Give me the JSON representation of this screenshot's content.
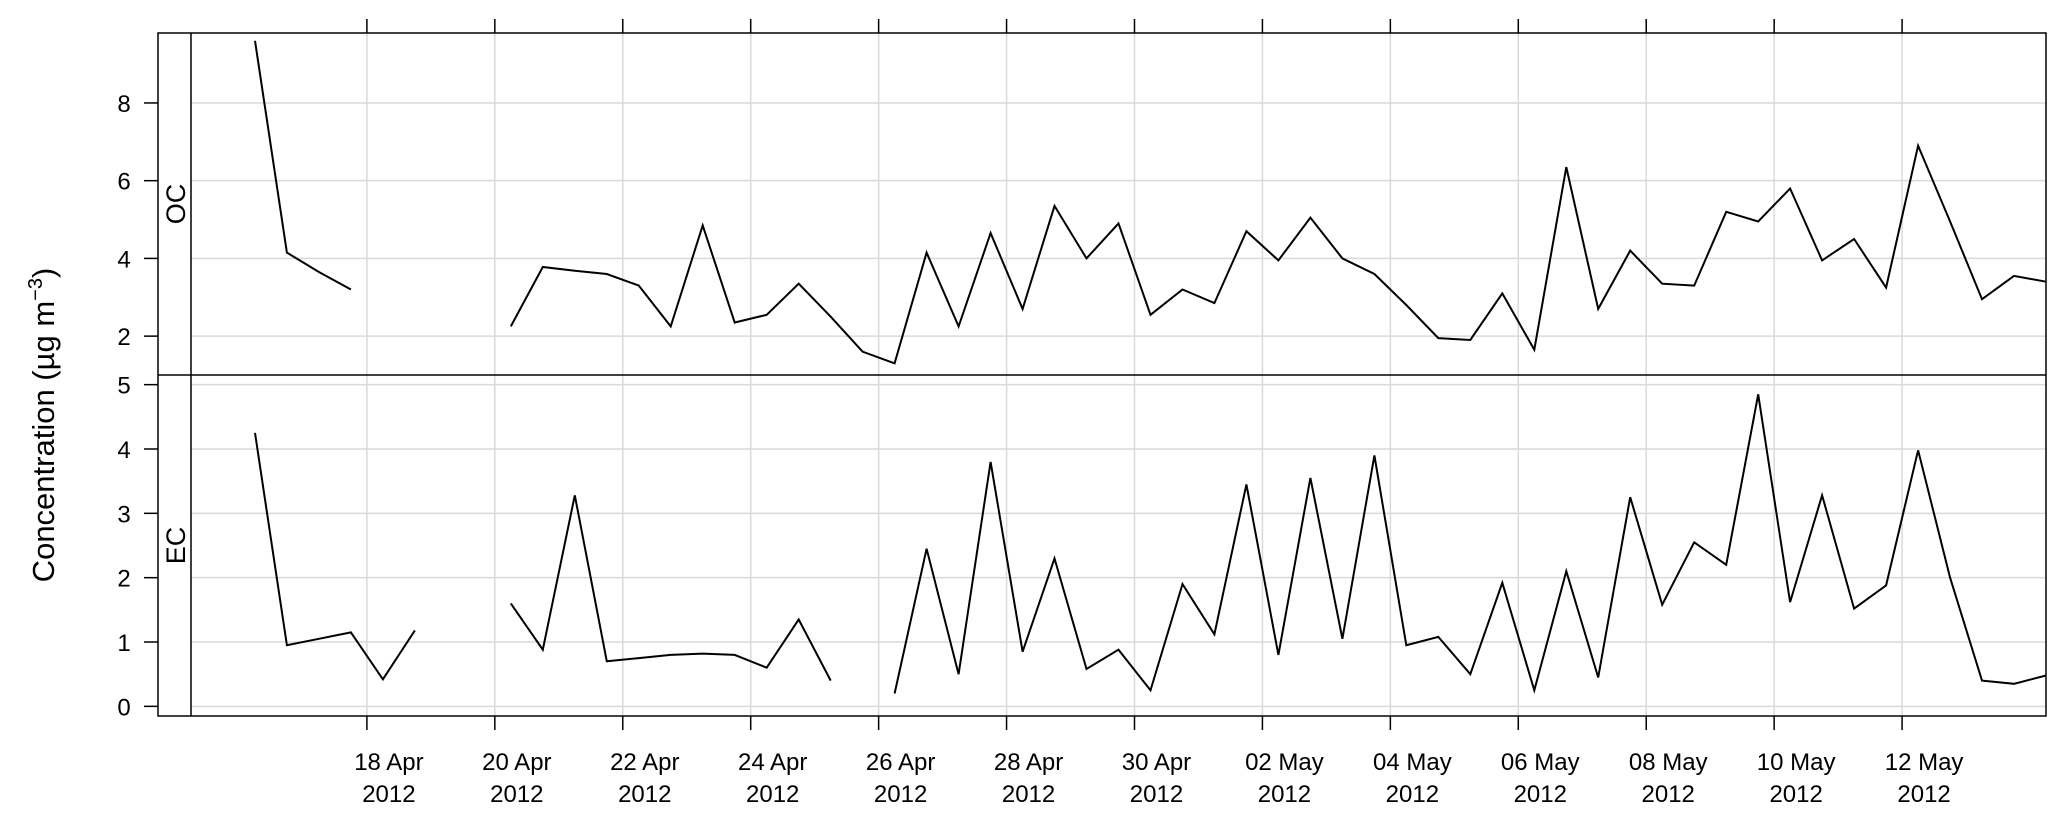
{
  "chart_data": {
    "type": "line",
    "ylabel": {
      "main": "Concentration (µg m",
      "exponent": "−3",
      "close": ")"
    },
    "x_ticks": [
      {
        "date": "2012-04-18",
        "line1": "18 Apr",
        "line2": "2012"
      },
      {
        "date": "2012-04-20",
        "line1": "20 Apr",
        "line2": "2012"
      },
      {
        "date": "2012-04-22",
        "line1": "22 Apr",
        "line2": "2012"
      },
      {
        "date": "2012-04-24",
        "line1": "24 Apr",
        "line2": "2012"
      },
      {
        "date": "2012-04-26",
        "line1": "26 Apr",
        "line2": "2012"
      },
      {
        "date": "2012-04-28",
        "line1": "28 Apr",
        "line2": "2012"
      },
      {
        "date": "2012-04-30",
        "line1": "30 Apr",
        "line2": "2012"
      },
      {
        "date": "2012-05-02",
        "line1": "02 May",
        "line2": "2012"
      },
      {
        "date": "2012-05-04",
        "line1": "04 May",
        "line2": "2012"
      },
      {
        "date": "2012-05-06",
        "line1": "06 May",
        "line2": "2012"
      },
      {
        "date": "2012-05-08",
        "line1": "08 May",
        "line2": "2012"
      },
      {
        "date": "2012-05-10",
        "line1": "10 May",
        "line2": "2012"
      },
      {
        "date": "2012-05-12",
        "line1": "12 May",
        "line2": "2012"
      }
    ],
    "x_range": [
      "2012-04-15T06:00",
      "2012-05-14T06:00"
    ],
    "grid": true,
    "panels": [
      {
        "name": "OC",
        "ylim": [
          1,
          9.8
        ],
        "yticks": [
          2,
          4,
          6,
          8
        ],
        "series": [
          [
            [
              "2012-04-16T06:00",
              9.6
            ],
            [
              "2012-04-16T18:00",
              4.15
            ],
            [
              "2012-04-17T06:00",
              3.65
            ],
            [
              "2012-04-17T18:00",
              3.2
            ]
          ],
          [
            [
              "2012-04-20T06:00",
              2.25
            ],
            [
              "2012-04-20T18:00",
              3.78
            ],
            [
              "2012-04-21T06:00",
              3.68
            ],
            [
              "2012-04-21T18:00",
              3.6
            ],
            [
              "2012-04-22T06:00",
              3.3
            ],
            [
              "2012-04-22T18:00",
              2.25
            ],
            [
              "2012-04-23T06:00",
              4.85
            ],
            [
              "2012-04-23T18:00",
              2.35
            ],
            [
              "2012-04-24T06:00",
              2.55
            ],
            [
              "2012-04-24T18:00",
              3.35
            ],
            [
              "2012-04-25T06:00",
              2.5
            ],
            [
              "2012-04-25T18:00",
              1.6
            ],
            [
              "2012-04-26T06:00",
              1.3
            ],
            [
              "2012-04-26T18:00",
              4.15
            ],
            [
              "2012-04-27T06:00",
              2.25
            ],
            [
              "2012-04-27T18:00",
              4.65
            ],
            [
              "2012-04-28T06:00",
              2.7
            ],
            [
              "2012-04-28T18:00",
              5.35
            ],
            [
              "2012-04-29T06:00",
              4.0
            ],
            [
              "2012-04-29T18:00",
              4.9
            ],
            [
              "2012-04-30T06:00",
              2.55
            ],
            [
              "2012-04-30T18:00",
              3.2
            ],
            [
              "2012-05-01T06:00",
              2.85
            ],
            [
              "2012-05-01T18:00",
              4.7
            ],
            [
              "2012-05-02T06:00",
              3.95
            ],
            [
              "2012-05-02T18:00",
              5.05
            ],
            [
              "2012-05-03T06:00",
              4.0
            ],
            [
              "2012-05-03T18:00",
              3.6
            ],
            [
              "2012-05-04T06:00",
              2.8
            ],
            [
              "2012-05-04T18:00",
              1.95
            ],
            [
              "2012-05-05T06:00",
              1.9
            ],
            [
              "2012-05-05T18:00",
              3.1
            ],
            [
              "2012-05-06T06:00",
              1.65
            ],
            [
              "2012-05-06T18:00",
              6.35
            ],
            [
              "2012-05-07T06:00",
              2.7
            ],
            [
              "2012-05-07T18:00",
              4.2
            ],
            [
              "2012-05-08T06:00",
              3.35
            ],
            [
              "2012-05-08T18:00",
              3.3
            ],
            [
              "2012-05-09T06:00",
              5.2
            ],
            [
              "2012-05-09T18:00",
              4.95
            ],
            [
              "2012-05-10T06:00",
              5.8
            ],
            [
              "2012-05-10T18:00",
              3.95
            ],
            [
              "2012-05-11T06:00",
              4.5
            ],
            [
              "2012-05-11T18:00",
              3.25
            ],
            [
              "2012-05-12T06:00",
              6.9
            ],
            [
              "2012-05-12T18:00",
              4.95
            ],
            [
              "2012-05-13T06:00",
              2.95
            ],
            [
              "2012-05-13T18:00",
              3.55
            ],
            [
              "2012-05-14T06:00",
              3.4
            ]
          ]
        ]
      },
      {
        "name": "EC",
        "ylim": [
          -0.15,
          5.15
        ],
        "yticks": [
          0,
          1,
          2,
          3,
          4,
          5
        ],
        "series": [
          [
            [
              "2012-04-16T06:00",
              4.25
            ],
            [
              "2012-04-16T18:00",
              0.95
            ],
            [
              "2012-04-17T06:00",
              1.05
            ],
            [
              "2012-04-17T18:00",
              1.15
            ],
            [
              "2012-04-18T06:00",
              0.42
            ],
            [
              "2012-04-18T18:00",
              1.18
            ]
          ],
          [
            [
              "2012-04-20T06:00",
              1.6
            ],
            [
              "2012-04-20T18:00",
              0.88
            ],
            [
              "2012-04-21T06:00",
              3.28
            ],
            [
              "2012-04-21T18:00",
              0.7
            ],
            [
              "2012-04-22T06:00",
              0.75
            ],
            [
              "2012-04-22T18:00",
              0.8
            ],
            [
              "2012-04-23T06:00",
              0.82
            ],
            [
              "2012-04-23T18:00",
              0.8
            ],
            [
              "2012-04-24T06:00",
              0.6
            ],
            [
              "2012-04-24T18:00",
              1.35
            ],
            [
              "2012-04-25T06:00",
              0.4
            ]
          ],
          [
            [
              "2012-04-26T06:00",
              0.2
            ],
            [
              "2012-04-26T18:00",
              2.45
            ],
            [
              "2012-04-27T06:00",
              0.5
            ],
            [
              "2012-04-27T18:00",
              3.8
            ],
            [
              "2012-04-28T06:00",
              0.85
            ],
            [
              "2012-04-28T18:00",
              2.3
            ],
            [
              "2012-04-29T06:00",
              0.58
            ],
            [
              "2012-04-29T18:00",
              0.88
            ],
            [
              "2012-04-30T06:00",
              0.25
            ],
            [
              "2012-04-30T18:00",
              1.9
            ],
            [
              "2012-05-01T06:00",
              1.12
            ],
            [
              "2012-05-01T18:00",
              3.45
            ],
            [
              "2012-05-02T06:00",
              0.8
            ],
            [
              "2012-05-02T18:00",
              3.55
            ],
            [
              "2012-05-03T06:00",
              1.05
            ],
            [
              "2012-05-03T18:00",
              3.9
            ],
            [
              "2012-05-04T06:00",
              0.95
            ],
            [
              "2012-05-04T18:00",
              1.08
            ],
            [
              "2012-05-05T06:00",
              0.5
            ],
            [
              "2012-05-05T18:00",
              1.92
            ],
            [
              "2012-05-06T06:00",
              0.25
            ],
            [
              "2012-05-06T18:00",
              2.1
            ],
            [
              "2012-05-07T06:00",
              0.45
            ],
            [
              "2012-05-07T18:00",
              3.25
            ],
            [
              "2012-05-08T06:00",
              1.58
            ],
            [
              "2012-05-08T18:00",
              2.55
            ],
            [
              "2012-05-09T06:00",
              2.2
            ],
            [
              "2012-05-09T18:00",
              4.85
            ],
            [
              "2012-05-10T06:00",
              1.62
            ],
            [
              "2012-05-10T18:00",
              3.28
            ],
            [
              "2012-05-11T06:00",
              1.52
            ],
            [
              "2012-05-11T18:00",
              1.88
            ],
            [
              "2012-05-12T06:00",
              3.98
            ],
            [
              "2012-05-12T18:00",
              2.0
            ],
            [
              "2012-05-13T06:00",
              0.4
            ],
            [
              "2012-05-13T18:00",
              0.35
            ],
            [
              "2012-05-14T06:00",
              0.48
            ]
          ]
        ]
      }
    ]
  }
}
